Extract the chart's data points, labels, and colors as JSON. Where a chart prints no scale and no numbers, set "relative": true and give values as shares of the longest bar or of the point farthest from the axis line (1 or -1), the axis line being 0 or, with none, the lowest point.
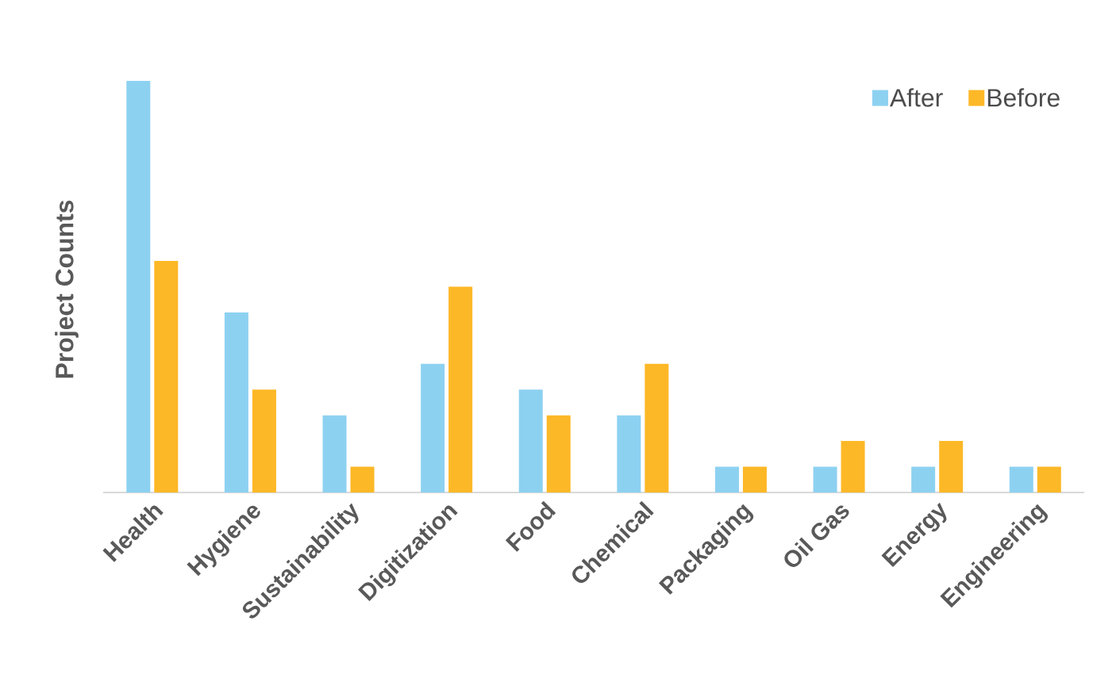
{
  "chart_data": {
    "type": "bar",
    "relative": true,
    "ylabel": "Project Counts",
    "categories": [
      "Health",
      "Hygiene",
      "Sustainability",
      "Digitization",
      "Food",
      "Chemical",
      "Packaging",
      "Oil Gas",
      "Energy",
      "Engineering"
    ],
    "series": [
      {
        "name": "After",
        "color": "#8dd1f1",
        "values": [
          1,
          0.4375,
          0.1875,
          0.3125,
          0.25,
          0.1875,
          0.0625,
          0.0625,
          0.0625,
          0.0625
        ]
      },
      {
        "name": "Before",
        "color": "#fdb827",
        "values": [
          0.5625,
          0.25,
          0.0625,
          0.5,
          0.1875,
          0.3125,
          0.0625,
          0.125,
          0.125,
          0.0625
        ]
      }
    ],
    "legend": "top right"
  }
}
